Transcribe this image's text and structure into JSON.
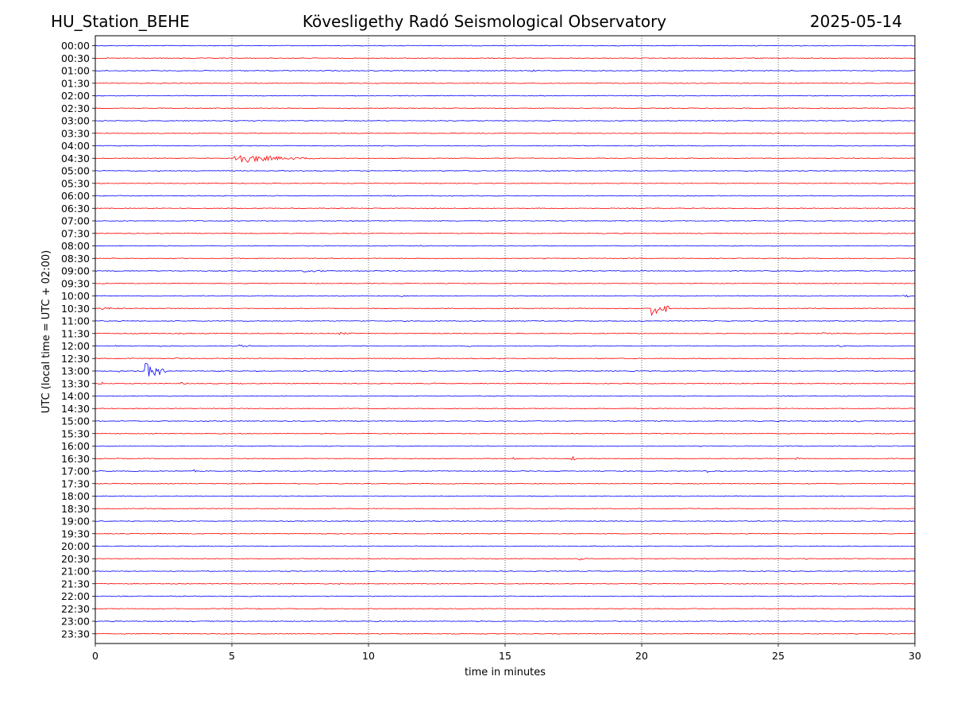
{
  "header": {
    "station": "HU_Station_BEHE",
    "observatory": "Kövesligethy Radó Seismological Observatory",
    "date": "2025-05-14"
  },
  "chart_data": {
    "type": "line",
    "title": "Kövesligethy Radó Seismological Observatory",
    "xlabel": "time in minutes",
    "ylabel": "UTC (local time = UTC + 02:00)",
    "xlim": [
      0,
      30
    ],
    "xticks": [
      0,
      5,
      10,
      15,
      20,
      25,
      30
    ],
    "grid": "vertical dotted at x ticks",
    "colors": {
      "even_rows": "#0000ff",
      "odd_rows": "#ff0000"
    },
    "rows": [
      {
        "label": "00:00",
        "events": []
      },
      {
        "label": "00:30",
        "events": []
      },
      {
        "label": "01:00",
        "events": [
          {
            "t": 16.0,
            "amp": 1.5,
            "dur": 0.1
          }
        ]
      },
      {
        "label": "01:30",
        "events": [
          {
            "t": 2.4,
            "amp": 1.0,
            "dur": 0.1
          },
          {
            "t": 23.8,
            "amp": 1.2,
            "dur": 0.1
          }
        ]
      },
      {
        "label": "02:00",
        "events": [
          {
            "t": 18.9,
            "amp": 1.0,
            "dur": 0.1
          }
        ]
      },
      {
        "label": "02:30",
        "events": []
      },
      {
        "label": "03:00",
        "events": []
      },
      {
        "label": "03:30",
        "events": []
      },
      {
        "label": "04:00",
        "events": []
      },
      {
        "label": "04:30",
        "events": [
          {
            "t": 5.0,
            "amp": 8.0,
            "dur": 4.2
          }
        ]
      },
      {
        "label": "05:00",
        "events": [
          {
            "t": 1.4,
            "amp": 1.5,
            "dur": 0.2
          },
          {
            "t": 16.9,
            "amp": 1.0,
            "dur": 0.2
          }
        ]
      },
      {
        "label": "05:30",
        "events": []
      },
      {
        "label": "06:00",
        "events": [
          {
            "t": 10.6,
            "amp": 1.0,
            "dur": 0.6
          }
        ]
      },
      {
        "label": "06:30",
        "events": []
      },
      {
        "label": "07:00",
        "events": []
      },
      {
        "label": "07:30",
        "events": []
      },
      {
        "label": "08:00",
        "events": [
          {
            "t": 11.9,
            "amp": 1.5,
            "dur": 0.1
          }
        ]
      },
      {
        "label": "08:30",
        "events": []
      },
      {
        "label": "09:00",
        "events": [
          {
            "t": 7.6,
            "amp": 1.5,
            "dur": 1.0
          },
          {
            "t": 8.2,
            "amp": 3.0,
            "dur": 0.1
          },
          {
            "t": 11.6,
            "amp": 1.5,
            "dur": 0.1
          },
          {
            "t": 13.8,
            "amp": 1.0,
            "dur": 0.1
          },
          {
            "t": 15.4,
            "amp": 1.0,
            "dur": 0.4
          }
        ]
      },
      {
        "label": "09:30",
        "events": [
          {
            "t": 22.3,
            "amp": 1.5,
            "dur": 0.1
          }
        ]
      },
      {
        "label": "10:00",
        "events": [
          {
            "t": 3.9,
            "amp": 1.5,
            "dur": 0.1
          },
          {
            "t": 11.2,
            "amp": 2.0,
            "dur": 0.1
          },
          {
            "t": 29.5,
            "amp": 2.0,
            "dur": 0.5
          }
        ]
      },
      {
        "label": "10:30",
        "events": [
          {
            "t": 0.1,
            "amp": 1.5,
            "dur": 1.0
          },
          {
            "t": 20.3,
            "amp": 9.0,
            "dur": 0.7
          }
        ]
      },
      {
        "label": "11:00",
        "events": []
      },
      {
        "label": "11:30",
        "events": [
          {
            "t": 2.9,
            "amp": 1.5,
            "dur": 0.5
          },
          {
            "t": 8.9,
            "amp": 1.5,
            "dur": 0.6
          },
          {
            "t": 26.6,
            "amp": 1.5,
            "dur": 0.4
          }
        ]
      },
      {
        "label": "12:00",
        "events": [
          {
            "t": 0.7,
            "amp": 2.5,
            "dur": 0.1
          },
          {
            "t": 2.3,
            "amp": 1.5,
            "dur": 0.2
          },
          {
            "t": 5.2,
            "amp": 1.5,
            "dur": 0.6
          },
          {
            "t": 13.6,
            "amp": 1.2,
            "dur": 0.2
          },
          {
            "t": 27.0,
            "amp": 1.2,
            "dur": 2.0
          }
        ]
      },
      {
        "label": "12:30",
        "events": [
          {
            "t": 1.2,
            "amp": 1.5,
            "dur": 0.2
          },
          {
            "t": 2.9,
            "amp": 1.5,
            "dur": 0.2
          },
          {
            "t": 14.8,
            "amp": 1.0,
            "dur": 0.2
          }
        ]
      },
      {
        "label": "13:00",
        "events": [
          {
            "t": 0.8,
            "amp": 2.5,
            "dur": 0.1
          },
          {
            "t": 1.8,
            "amp": 11.0,
            "dur": 0.5
          },
          {
            "t": 2.3,
            "amp": 5.0,
            "dur": 0.3
          },
          {
            "t": 4.4,
            "amp": 1.5,
            "dur": 0.2
          }
        ]
      },
      {
        "label": "13:30",
        "events": [
          {
            "t": 0.1,
            "amp": 6.0,
            "dur": 0.2
          },
          {
            "t": 3.1,
            "amp": 1.5,
            "dur": 0.3
          },
          {
            "t": 12.4,
            "amp": 1.5,
            "dur": 0.1
          },
          {
            "t": 29.4,
            "amp": 1.5,
            "dur": 0.1
          }
        ]
      },
      {
        "label": "14:00",
        "events": []
      },
      {
        "label": "14:30",
        "events": []
      },
      {
        "label": "15:00",
        "events": [
          {
            "t": 27.8,
            "amp": 1.2,
            "dur": 0.3
          }
        ]
      },
      {
        "label": "15:30",
        "events": [
          {
            "t": 20.4,
            "amp": 1.0,
            "dur": 0.3
          }
        ]
      },
      {
        "label": "16:00",
        "events": []
      },
      {
        "label": "16:30",
        "events": [
          {
            "t": 15.3,
            "amp": 1.5,
            "dur": 0.3
          },
          {
            "t": 17.4,
            "amp": 5.0,
            "dur": 0.2
          },
          {
            "t": 25.6,
            "amp": 2.0,
            "dur": 0.2
          }
        ]
      },
      {
        "label": "17:00",
        "events": [
          {
            "t": 3.6,
            "amp": 2.0,
            "dur": 0.1
          },
          {
            "t": 22.4,
            "amp": 2.0,
            "dur": 0.1
          }
        ]
      },
      {
        "label": "17:30",
        "events": [
          {
            "t": 8.1,
            "amp": 1.0,
            "dur": 0.1
          }
        ]
      },
      {
        "label": "18:00",
        "events": []
      },
      {
        "label": "18:30",
        "events": []
      },
      {
        "label": "19:00",
        "events": []
      },
      {
        "label": "19:30",
        "events": []
      },
      {
        "label": "20:00",
        "events": []
      },
      {
        "label": "20:30",
        "events": [
          {
            "t": 17.7,
            "amp": 2.0,
            "dur": 0.2
          },
          {
            "t": 26.0,
            "amp": 1.5,
            "dur": 0.1
          }
        ]
      },
      {
        "label": "21:00",
        "events": []
      },
      {
        "label": "21:30",
        "events": [
          {
            "t": 8.9,
            "amp": 1.0,
            "dur": 0.3
          }
        ]
      },
      {
        "label": "22:00",
        "events": [
          {
            "t": 27.3,
            "amp": 1.0,
            "dur": 0.4
          }
        ]
      },
      {
        "label": "22:30",
        "events": [
          {
            "t": 5.9,
            "amp": 1.0,
            "dur": 0.2
          }
        ]
      },
      {
        "label": "23:00",
        "events": []
      },
      {
        "label": "23:30",
        "events": []
      }
    ]
  }
}
